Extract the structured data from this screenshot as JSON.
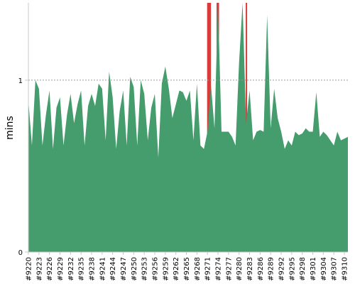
{
  "chart_data": {
    "type": "area",
    "title": "",
    "ylabel": "mins",
    "xlabel": "",
    "ylim": [
      0,
      1.45
    ],
    "yticks": [
      0,
      1
    ],
    "grid": "dashed horizontal reference line at y = 1",
    "colors": {
      "area": "#459c6c",
      "highlight": "#d93a3a",
      "gridline": "#9a9a9a",
      "axis": "#c8c8c8"
    },
    "x_tick_labels": [
      "#9220",
      "#9223",
      "#9226",
      "#9229",
      "#9232",
      "#9235",
      "#9238",
      "#9241",
      "#9244",
      "#9247",
      "#9250",
      "#9253",
      "#9256",
      "#9259",
      "#9262",
      "#9265",
      "#9268",
      "#9271",
      "#9274",
      "#9277",
      "#9280",
      "#9283",
      "#9286",
      "#9289",
      "#9292",
      "#9295",
      "#9298",
      "#9301",
      "#9304",
      "#9307",
      "#9310"
    ],
    "x_first": 9220,
    "x_last": 9311,
    "values": [
      0.88,
      0.62,
      1.0,
      0.95,
      0.62,
      0.8,
      0.94,
      0.6,
      0.84,
      0.9,
      0.62,
      0.8,
      0.92,
      0.75,
      0.86,
      0.94,
      0.62,
      0.85,
      0.92,
      0.85,
      0.98,
      0.95,
      0.65,
      1.05,
      0.9,
      0.6,
      0.82,
      0.94,
      0.62,
      1.02,
      0.96,
      0.62,
      1.0,
      0.92,
      0.65,
      0.84,
      0.92,
      0.55,
      0.98,
      1.08,
      0.95,
      0.78,
      0.86,
      0.94,
      0.93,
      0.88,
      0.94,
      0.65,
      0.98,
      0.62,
      0.6,
      0.7,
      0.97,
      0.72,
      1.45,
      0.7,
      0.7,
      0.7,
      0.67,
      0.62,
      1.1,
      1.45,
      0.75,
      0.94,
      0.65,
      0.7,
      0.71,
      0.7,
      1.38,
      0.72,
      0.95,
      0.78,
      0.7,
      0.6,
      0.65,
      0.62,
      0.7,
      0.68,
      0.69,
      0.72,
      0.7,
      0.7,
      0.93,
      0.67,
      0.7,
      0.68,
      0.65,
      0.62,
      0.7,
      0.65,
      0.66,
      0.67
    ],
    "highlight_spans": [
      [
        9270.9,
        9272.0
      ],
      [
        9273.6,
        9274.3
      ],
      [
        9281.9,
        9282.3
      ]
    ]
  }
}
